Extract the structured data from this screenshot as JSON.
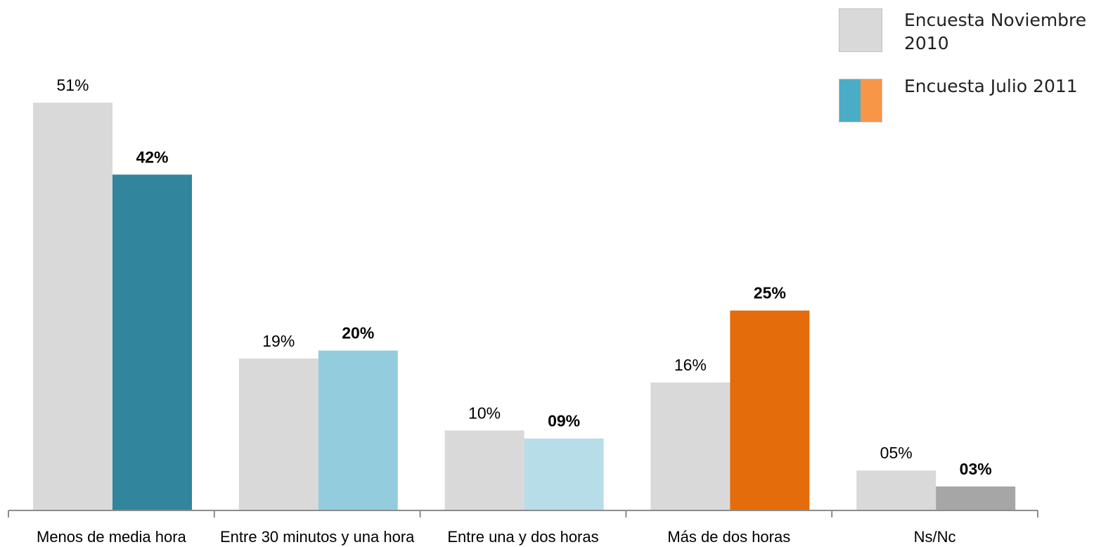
{
  "chart_data": {
    "type": "bar",
    "categories": [
      "Menos de media hora",
      "Entre 30 minutos y una hora",
      "Entre una y dos horas",
      "Más de dos horas",
      "Ns/Nc"
    ],
    "series": [
      {
        "name": "Encuesta Noviembre 2010",
        "values": [
          51,
          19,
          10,
          16,
          5
        ],
        "labels": [
          "51%",
          "19%",
          "10%",
          "16%",
          "05%"
        ],
        "color": "#d9d9d9"
      },
      {
        "name": "Encuesta Julio 2011",
        "values": [
          42,
          20,
          9,
          25,
          3
        ],
        "labels": [
          "42%",
          "20%",
          "09%",
          "25%",
          "03%"
        ],
        "colors": [
          "#31859c",
          "#93cddd",
          "#b7dee8",
          "#e46c0a",
          "#a6a6a6"
        ]
      }
    ],
    "ylim": [
      0,
      60
    ],
    "grid": false,
    "legend_position": "top-right"
  },
  "legend": {
    "items": [
      {
        "label": "Encuesta Noviembre 2010",
        "colors": [
          "#d9d9d9"
        ]
      },
      {
        "label": "Encuesta Julio 2011",
        "colors": [
          "#4bacc6",
          "#f79646"
        ]
      }
    ]
  }
}
